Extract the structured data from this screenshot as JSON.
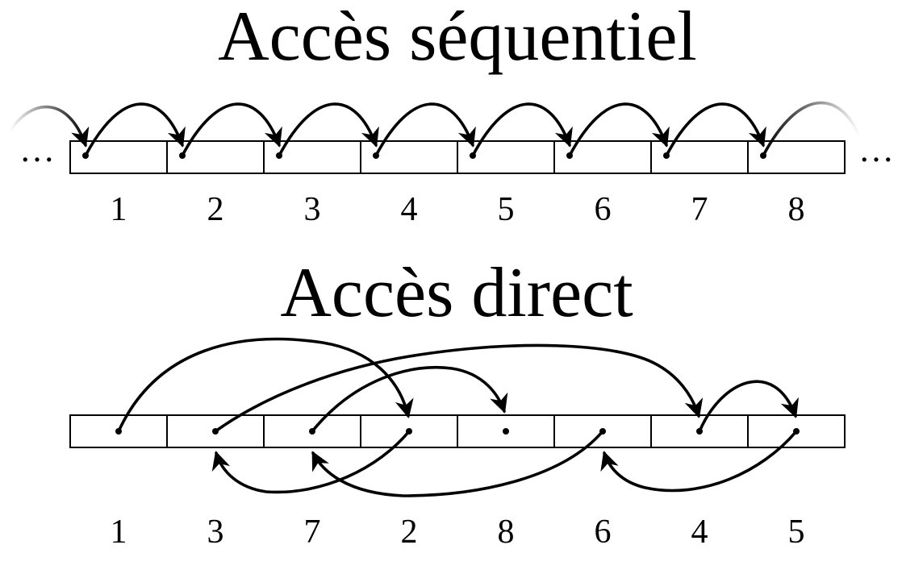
{
  "sequential": {
    "title": "Accès séquentiel",
    "ellipsis_left": "…",
    "ellipsis_right": "…",
    "labels": [
      "1",
      "2",
      "3",
      "4",
      "5",
      "6",
      "7",
      "8"
    ]
  },
  "direct": {
    "title": "Accès direct",
    "labels": [
      "1",
      "3",
      "7",
      "2",
      "8",
      "6",
      "4",
      "5"
    ]
  },
  "colors": {
    "stroke": "#000000",
    "background": "#ffffff",
    "fade": "#9a9a9a"
  }
}
